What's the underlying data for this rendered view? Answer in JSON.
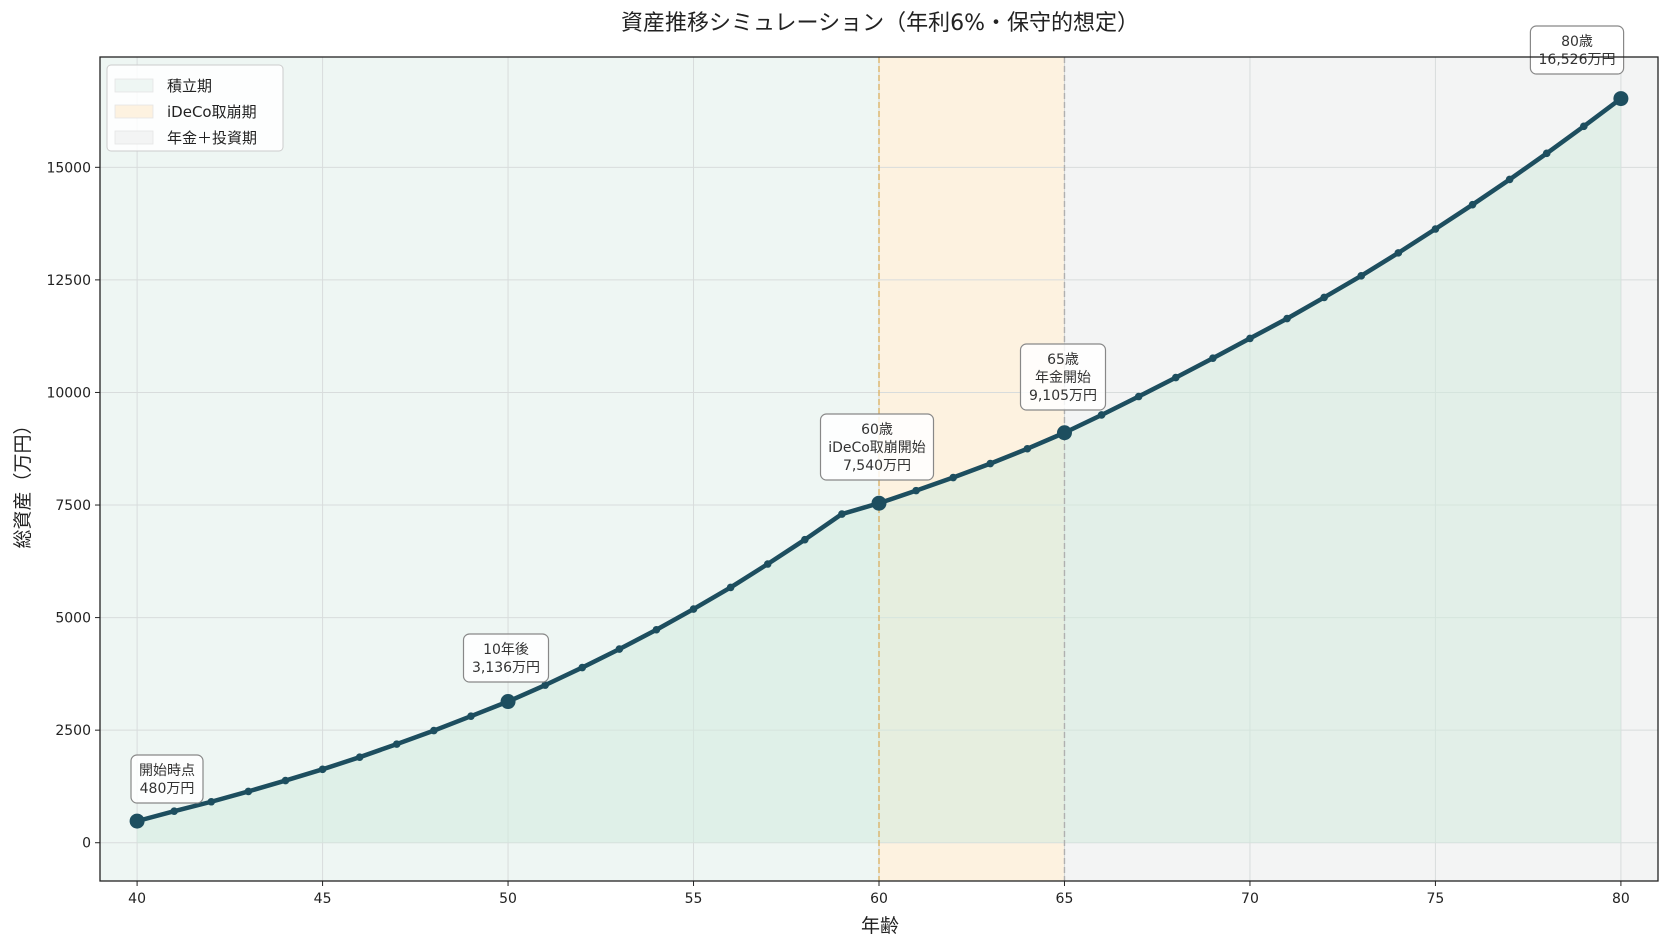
{
  "chart_data": {
    "type": "line",
    "title": "資産推移シミュレーション（年利6%・保守的想定）",
    "xlabel": "年齢",
    "ylabel": "総資産（万円）",
    "xlim": [
      39,
      81
    ],
    "ylim": [
      -850,
      17450
    ],
    "xticks": [
      40,
      45,
      50,
      55,
      60,
      65,
      70,
      75,
      80
    ],
    "yticks": [
      0,
      2500,
      5000,
      7500,
      10000,
      12500,
      15000
    ],
    "grid": true,
    "legend_position": "top-left",
    "colors": {
      "line": "#1d4e5f",
      "fill": "#d3ebdf",
      "phase_accumulation": "#eef6f3",
      "phase_ideco": "#fdf2e0",
      "phase_pension": "#f3f4f4",
      "vline_60": "#d9b36a",
      "vline_65": "#b0b0b0"
    },
    "phases": [
      {
        "label": "積立期",
        "start": 39,
        "end": 60
      },
      {
        "label": "iDeCo取崩期",
        "start": 60,
        "end": 65
      },
      {
        "label": "年金＋投資期",
        "start": 65,
        "end": 81
      }
    ],
    "series": [
      {
        "x": [
          40,
          41,
          42,
          43,
          44,
          45,
          46,
          47,
          48,
          49,
          50,
          51,
          52,
          53,
          54,
          55,
          56,
          57,
          58,
          59,
          60,
          61,
          62,
          63,
          64,
          65,
          66,
          67,
          68,
          69,
          70,
          71,
          72,
          73,
          74,
          75,
          76,
          77,
          78,
          79,
          80
        ],
        "values": [
          480,
          700,
          910,
          1140,
          1380,
          1630,
          1900,
          2190,
          2490,
          2810,
          3136,
          3500,
          3890,
          4300,
          4730,
          5190,
          5670,
          6190,
          6730,
          7300,
          7540,
          7820,
          8110,
          8420,
          8750,
          9105,
          9500,
          9910,
          10330,
          10760,
          11200,
          11640,
          12110,
          12590,
          13100,
          13630,
          14170,
          14730,
          15310,
          15910,
          16526
        ]
      }
    ],
    "highlight_x": [
      40,
      50,
      60,
      65,
      80
    ],
    "annotations": [
      {
        "x": 40,
        "lines": [
          "開始時点",
          "480万円"
        ]
      },
      {
        "x": 50,
        "lines": [
          "10年後",
          "3,136万円"
        ]
      },
      {
        "x": 60,
        "lines": [
          "60歳",
          "iDeCo取崩開始",
          "7,540万円"
        ]
      },
      {
        "x": 65,
        "lines": [
          "65歳",
          "年金開始",
          "9,105万円"
        ]
      },
      {
        "x": 80,
        "lines": [
          "80歳",
          "16,526万円"
        ]
      }
    ]
  }
}
